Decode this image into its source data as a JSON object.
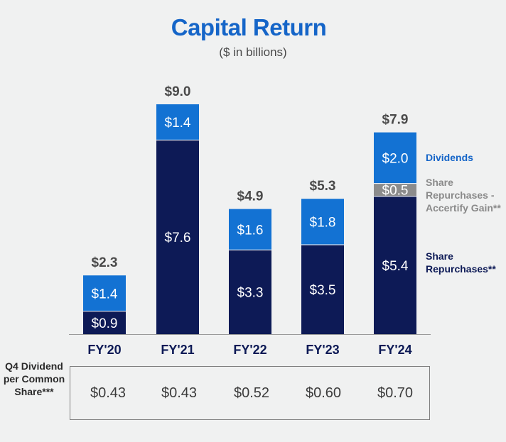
{
  "title": "Capital Return",
  "subtitle": "($ in billions)",
  "legend": {
    "dividends": "Dividends",
    "accertify": "Share Repurchases - Accertify Gain**",
    "repurchases": "Share Repurchases**"
  },
  "colors": {
    "dividends": "#1372d3",
    "accertify": "#8c8c8c",
    "repurchases": "#0d1a56",
    "title": "#1565c8"
  },
  "chart_data": {
    "type": "bar",
    "stacked": true,
    "categories": [
      "FY'20",
      "FY'21",
      "FY'22",
      "FY'23",
      "FY'24"
    ],
    "series": [
      {
        "name": "Share Repurchases**",
        "values": [
          0.9,
          7.6,
          3.3,
          3.5,
          5.4
        ],
        "labels": [
          "$0.9",
          "$7.6",
          "$3.3",
          "$3.5",
          "$5.4"
        ]
      },
      {
        "name": "Share Repurchases - Accertify Gain**",
        "values": [
          0,
          0,
          0,
          0,
          0.5
        ],
        "labels": [
          "",
          "",
          "",
          "",
          "$0.5"
        ]
      },
      {
        "name": "Dividends",
        "values": [
          1.4,
          1.4,
          1.6,
          1.8,
          2.0
        ],
        "labels": [
          "$1.4",
          "$1.4",
          "$1.6",
          "$1.8",
          "$2.0"
        ]
      }
    ],
    "totals": [
      2.3,
      9.0,
      4.9,
      5.3,
      7.9
    ],
    "total_labels": [
      "$2.3",
      "$9.0",
      "$4.9",
      "$5.3",
      "$7.9"
    ],
    "ylim": [
      0,
      9.0
    ],
    "grid": false,
    "legend_position": "right"
  },
  "dividend_table": {
    "row_label": "Q4 Dividend per Common Share***",
    "values": [
      "$0.43",
      "$0.43",
      "$0.52",
      "$0.60",
      "$0.70"
    ]
  }
}
